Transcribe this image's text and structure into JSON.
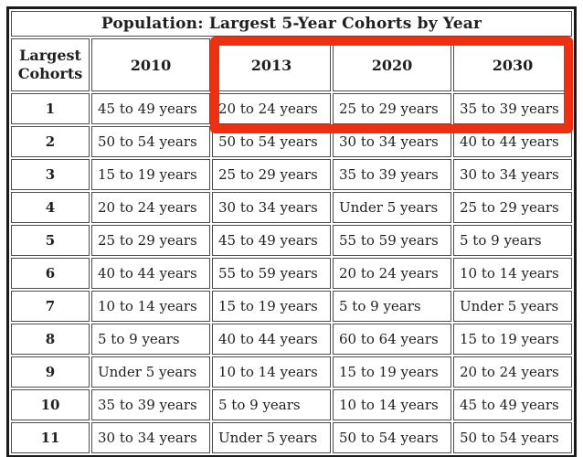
{
  "chart_data": {
    "type": "table",
    "title": "Population: Largest 5-Year Cohorts by Year",
    "columns": [
      "Largest Cohorts",
      "2010",
      "2013",
      "2020",
      "2030"
    ],
    "rows": [
      [
        "1",
        "45 to 49 years",
        "20 to 24 years",
        "25 to 29 years",
        "35 to 39 years"
      ],
      [
        "2",
        "50 to 54 years",
        "50 to 54 years",
        "30 to 34 years",
        "40 to 44 years"
      ],
      [
        "3",
        "15 to 19 years",
        "25 to 29 years",
        "35 to 39 years",
        "30 to 34 years"
      ],
      [
        "4",
        "20 to 24 years",
        "30 to 34 years",
        "Under 5 years",
        "25 to 29 years"
      ],
      [
        "5",
        "25 to 29 years",
        "45 to 49 years",
        "55 to 59 years",
        "5 to 9 years"
      ],
      [
        "6",
        "40 to 44 years",
        "55 to 59 years",
        "20 to 24 years",
        "10 to 14 years"
      ],
      [
        "7",
        "10 to 14 years",
        "15 to 19 years",
        "5 to 9 years",
        "Under 5 years"
      ],
      [
        "8",
        "5 to 9 years",
        "40 to 44 years",
        "60 to 64 years",
        "15 to 19 years"
      ],
      [
        "9",
        "Under 5 years",
        "10 to 14 years",
        "15 to 19 years",
        "20 to 24 years"
      ],
      [
        "10",
        "35 to 39 years",
        "5 to 9 years",
        "10 to 14 years",
        "45 to 49 years"
      ],
      [
        "11",
        "30 to 34 years",
        "Under 5 years",
        "50 to 54 years",
        "50 to 54 years"
      ]
    ]
  },
  "highlight": {
    "color": "#ee2f11",
    "highlighted_columns": [
      "2013",
      "2020",
      "2030"
    ],
    "highlighted_rank": "1"
  },
  "colors": {
    "outer_border": "#1a1a1a",
    "cell_border": "#4d4d4d",
    "text": "#1f1f1f",
    "background": "#ffffff"
  }
}
